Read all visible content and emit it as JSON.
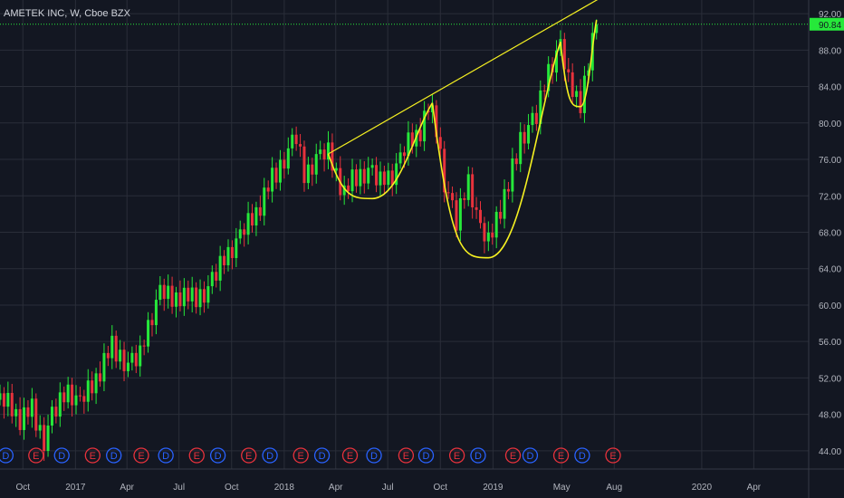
{
  "header": {
    "title": "AMETEK INC, W, Cboe BZX"
  },
  "colors": {
    "background": "#131722",
    "up": "#26e83a",
    "down": "#e8323c",
    "pattern": "#f5f021",
    "price_line": "#26e83a",
    "dividend": "#2962ff",
    "earnings": "#e8323c",
    "axis_text": "#b2b5be"
  },
  "chart_data": {
    "type": "candlestick",
    "title": "AMETEK INC, W, Cboe BZX",
    "interval": "W",
    "ylim": [
      42,
      93.5
    ],
    "xlim": [
      "2016-08-22",
      "2020-07-06"
    ],
    "y_ticks": [
      "44.00",
      "48.00",
      "52.00",
      "56.00",
      "60.00",
      "64.00",
      "68.00",
      "72.00",
      "76.00",
      "80.00",
      "84.00",
      "88.00",
      "92.00"
    ],
    "x_ticks": [
      {
        "label": "Oct",
        "date": "2016-10-01"
      },
      {
        "label": "2017",
        "date": "2017-01-01"
      },
      {
        "label": "Apr",
        "date": "2017-04-01"
      },
      {
        "label": "Jul",
        "date": "2017-07-01"
      },
      {
        "label": "Oct",
        "date": "2017-10-01"
      },
      {
        "label": "2018",
        "date": "2018-01-01"
      },
      {
        "label": "Apr",
        "date": "2018-04-01"
      },
      {
        "label": "Jul",
        "date": "2018-07-01"
      },
      {
        "label": "Oct",
        "date": "2018-10-01"
      },
      {
        "label": "2019",
        "date": "2019-01-01"
      },
      {
        "label": "May",
        "date": "2019-05-01"
      },
      {
        "label": "Aug",
        "date": "2019-08-01"
      },
      {
        "label": "2020",
        "date": "2020-01-01"
      },
      {
        "label": "Apr",
        "date": "2020-04-01"
      }
    ],
    "last_price": "90.84",
    "last_price_value": 90.84,
    "close_path": [
      [
        "2016-08-22",
        49.6
      ],
      [
        "2016-09-05",
        49.2
      ],
      [
        "2016-09-26",
        47.6
      ],
      [
        "2016-10-17",
        48.3
      ],
      [
        "2016-11-07",
        45.2
      ],
      [
        "2016-11-21",
        47.8
      ],
      [
        "2016-12-19",
        50.5
      ],
      [
        "2017-01-09",
        49.3
      ],
      [
        "2017-01-30",
        51.2
      ],
      [
        "2017-02-20",
        53.8
      ],
      [
        "2017-03-06",
        55.2
      ],
      [
        "2017-03-20",
        54.5
      ],
      [
        "2017-04-03",
        53.4
      ],
      [
        "2017-04-24",
        54.3
      ],
      [
        "2017-05-08",
        57.6
      ],
      [
        "2017-05-29",
        61.5
      ],
      [
        "2017-06-19",
        60.7
      ],
      [
        "2017-07-03",
        61.2
      ],
      [
        "2017-07-24",
        60.5
      ],
      [
        "2017-08-21",
        61.8
      ],
      [
        "2017-09-04",
        63.4
      ],
      [
        "2017-09-25",
        65.6
      ],
      [
        "2017-10-16",
        67.6
      ],
      [
        "2017-11-13",
        70.3
      ],
      [
        "2017-12-04",
        72.8
      ],
      [
        "2018-01-01",
        76.2
      ],
      [
        "2018-01-22",
        78.4
      ],
      [
        "2018-02-05",
        73.9
      ],
      [
        "2018-02-26",
        76.2
      ],
      [
        "2018-03-19",
        76.7
      ],
      [
        "2018-04-02",
        74.6
      ],
      [
        "2018-04-16",
        72.2
      ],
      [
        "2018-05-07",
        74.1
      ],
      [
        "2018-05-28",
        74.8
      ],
      [
        "2018-06-18",
        73.4
      ],
      [
        "2018-07-09",
        74.3
      ],
      [
        "2018-08-06",
        77.8
      ],
      [
        "2018-08-27",
        79.3
      ],
      [
        "2018-09-10",
        81.5
      ],
      [
        "2018-09-24",
        79.5
      ],
      [
        "2018-10-08",
        73.6
      ],
      [
        "2018-10-29",
        68.9
      ],
      [
        "2018-11-19",
        73.6
      ],
      [
        "2018-12-10",
        68.3
      ],
      [
        "2018-12-24",
        66.8
      ],
      [
        "2019-01-07",
        69.8
      ],
      [
        "2019-01-28",
        72.8
      ],
      [
        "2019-02-18",
        78.4
      ],
      [
        "2019-03-18",
        80.6
      ],
      [
        "2019-04-08",
        85.7
      ],
      [
        "2019-04-29",
        88.5
      ],
      [
        "2019-05-13",
        84.4
      ],
      [
        "2019-06-03",
        82.4
      ],
      [
        "2019-06-17",
        86.1
      ],
      [
        "2019-07-01",
        90.8
      ]
    ],
    "volatility_pattern": [
      1.3,
      -1.0,
      2.1,
      -1.6,
      0.8,
      -2.4,
      1.7,
      -0.6,
      2.6,
      -1.9,
      1.1,
      -2.2,
      0.5,
      1.9,
      -1.3,
      2.3,
      -0.9,
      1.4,
      -2.0,
      0.7
    ],
    "events": [
      {
        "type": "D",
        "date": "2016-09-01"
      },
      {
        "type": "E",
        "date": "2016-10-24"
      },
      {
        "type": "D",
        "date": "2016-12-08"
      },
      {
        "type": "E",
        "date": "2017-01-31"
      },
      {
        "type": "D",
        "date": "2017-03-09"
      },
      {
        "type": "E",
        "date": "2017-04-26"
      },
      {
        "type": "D",
        "date": "2017-06-08"
      },
      {
        "type": "E",
        "date": "2017-08-01"
      },
      {
        "type": "D",
        "date": "2017-09-07"
      },
      {
        "type": "E",
        "date": "2017-10-31"
      },
      {
        "type": "D",
        "date": "2017-12-07"
      },
      {
        "type": "E",
        "date": "2018-01-30"
      },
      {
        "type": "D",
        "date": "2018-03-08"
      },
      {
        "type": "E",
        "date": "2018-04-26"
      },
      {
        "type": "D",
        "date": "2018-06-07"
      },
      {
        "type": "E",
        "date": "2018-08-02"
      },
      {
        "type": "D",
        "date": "2018-09-06"
      },
      {
        "type": "E",
        "date": "2018-10-30"
      },
      {
        "type": "D",
        "date": "2018-12-06"
      },
      {
        "type": "E",
        "date": "2019-02-05"
      },
      {
        "type": "D",
        "date": "2019-03-07"
      },
      {
        "type": "E",
        "date": "2019-04-30"
      },
      {
        "type": "D",
        "date": "2019-06-06"
      },
      {
        "type": "E",
        "date": "2019-07-30"
      }
    ],
    "pattern_annotation": {
      "name": "cup and handle",
      "trendline": [
        [
          "2018-03-19",
          76.6
        ],
        [
          "2019-08-26",
          95.5
        ]
      ],
      "cup1": {
        "left": [
          "2018-03-19",
          76.6
        ],
        "bottom": [
          "2018-06-04",
          71.7
        ],
        "right": [
          "2018-09-17",
          82.2
        ]
      },
      "cup2": {
        "left": [
          "2018-09-17",
          82.2
        ],
        "bottom": [
          "2018-12-24",
          65.2
        ],
        "right": [
          "2019-04-29",
          88.9
        ]
      },
      "handle": {
        "left": [
          "2019-04-29",
          88.9
        ],
        "bottom": [
          "2019-06-03",
          81.8
        ],
        "right": [
          "2019-07-01",
          91.3
        ]
      }
    }
  }
}
